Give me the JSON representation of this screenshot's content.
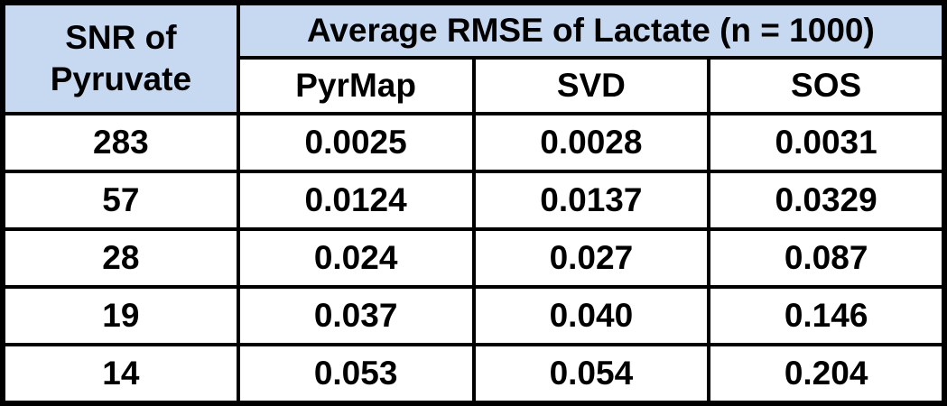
{
  "table": {
    "corner_header": {
      "line1": "SNR of",
      "line2": "Pyruvate"
    },
    "group_header": "Average RMSE of Lactate (n = 1000)",
    "method_headers": {
      "pyrmap": "PyrMap",
      "svd": "SVD",
      "sos": "SOS"
    },
    "rows": [
      {
        "snr": "283",
        "values": [
          "0.0025",
          "0.0028",
          "0.0031"
        ]
      },
      {
        "snr": "57",
        "values": [
          "0.0124",
          "0.0137",
          "0.0329"
        ]
      },
      {
        "snr": "28",
        "values": [
          "0.024",
          "0.027",
          "0.087"
        ]
      },
      {
        "snr": "19",
        "values": [
          "0.037",
          "0.040",
          "0.146"
        ]
      },
      {
        "snr": "14",
        "values": [
          "0.053",
          "0.054",
          "0.204"
        ]
      }
    ]
  },
  "chart_data": {
    "type": "table",
    "title": "Average RMSE of Lactate (n = 1000)",
    "row_header_label": "SNR of Pyruvate",
    "columns": [
      "PyrMap",
      "SVD",
      "SOS"
    ],
    "snr_of_pyruvate": [
      283,
      57,
      28,
      19,
      14
    ],
    "series": [
      {
        "name": "PyrMap",
        "values": [
          0.0025,
          0.0124,
          0.024,
          0.037,
          0.053
        ]
      },
      {
        "name": "SVD",
        "values": [
          0.0028,
          0.0137,
          0.027,
          0.04,
          0.054
        ]
      },
      {
        "name": "SOS",
        "values": [
          0.0031,
          0.0329,
          0.087,
          0.146,
          0.204
        ]
      }
    ]
  },
  "colors": {
    "header_fill": "#C6D9F0",
    "cell_fill": "#FFFFFF",
    "border": "#000000",
    "text": "#000000"
  }
}
